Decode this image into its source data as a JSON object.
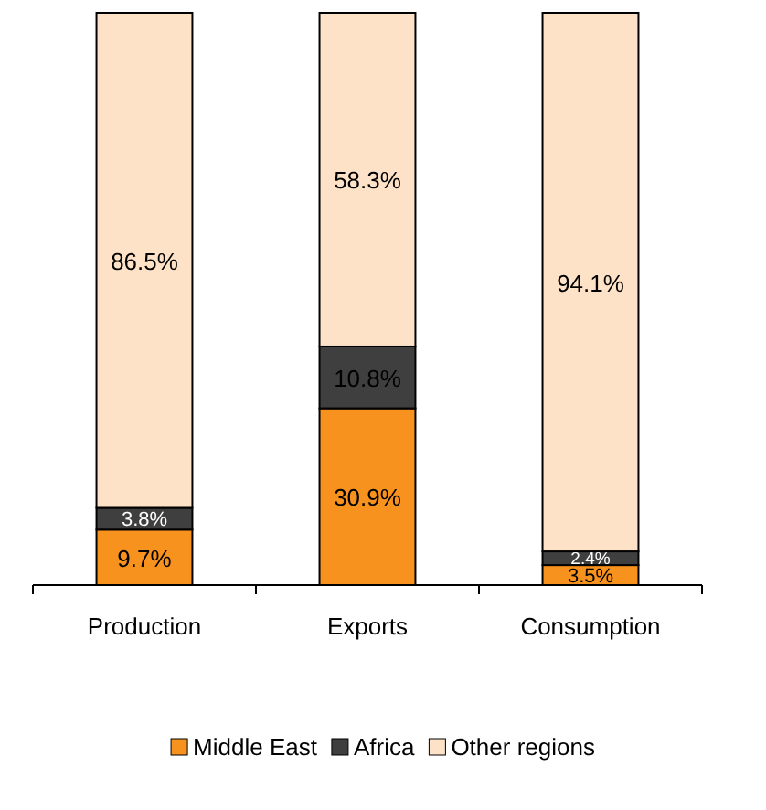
{
  "chart_data": {
    "type": "bar",
    "stacked": true,
    "legend": "bottom",
    "categories": [
      "Production",
      "Exports",
      "Consumption"
    ],
    "series": [
      {
        "name": "Middle East",
        "color": "#f7921e",
        "values": [
          9.7,
          30.9,
          3.5
        ],
        "value_labels": [
          "9.7%",
          "30.9%",
          "3.5%"
        ]
      },
      {
        "name": "Africa",
        "color": "#3f3f3f",
        "values": [
          3.8,
          10.8,
          2.4
        ],
        "value_labels": [
          "3.8%",
          "10.8%",
          "2.4%"
        ]
      },
      {
        "name": "Other regions",
        "color": "#fde2c8",
        "values": [
          86.5,
          58.3,
          94.1
        ],
        "value_labels": [
          "86.5%",
          "58.3%",
          "94.1%"
        ]
      }
    ]
  }
}
